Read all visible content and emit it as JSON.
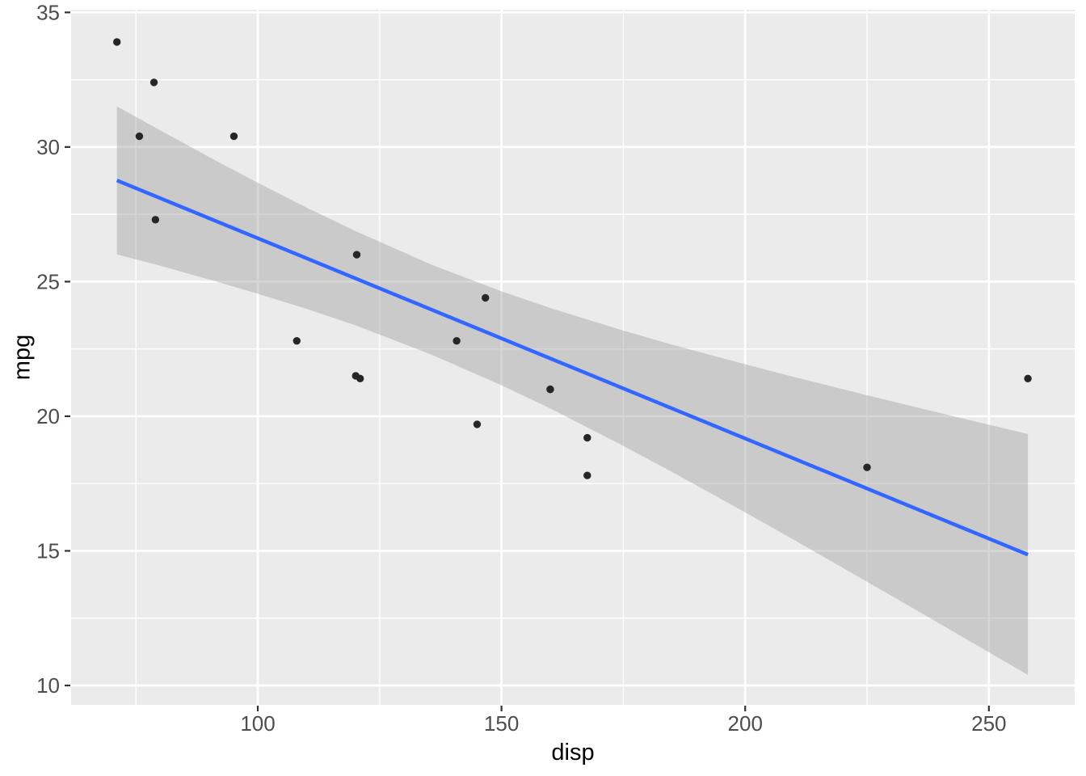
{
  "chart_data": {
    "type": "scatter",
    "title": "",
    "xlabel": "disp",
    "ylabel": "mpg",
    "x_ticks": [
      100,
      150,
      200,
      250
    ],
    "y_ticks": [
      10,
      15,
      20,
      25,
      30,
      35
    ],
    "x_minor_ticks": [
      75,
      125,
      175,
      225
    ],
    "y_minor_ticks": [
      12.5,
      17.5,
      22.5,
      27.5,
      32.5
    ],
    "xlim": [
      61.7,
      267.6
    ],
    "ylim": [
      9.28,
      35.1
    ],
    "grid": "on",
    "legend": "none",
    "points": [
      [
        160,
        21.0
      ],
      [
        160,
        21.0
      ],
      [
        108,
        22.8
      ],
      [
        258,
        21.4
      ],
      [
        225,
        18.1
      ],
      [
        146.7,
        24.4
      ],
      [
        140.8,
        22.8
      ],
      [
        167.6,
        19.2
      ],
      [
        167.6,
        17.8
      ],
      [
        78.7,
        32.4
      ],
      [
        75.7,
        30.4
      ],
      [
        71.1,
        33.9
      ],
      [
        120.1,
        21.5
      ],
      [
        79,
        27.3
      ],
      [
        120.3,
        26.0
      ],
      [
        95.1,
        30.4
      ],
      [
        145,
        19.7
      ],
      [
        121,
        21.4
      ]
    ],
    "smooth_line": {
      "method": "lm",
      "x": [
        71.1,
        258
      ],
      "y": [
        28.76,
        14.86
      ]
    },
    "ribbon": {
      "x": [
        71.1,
        80,
        90,
        100,
        110,
        120,
        135.5,
        150,
        160,
        175,
        185,
        200,
        210,
        225,
        235,
        245,
        258
      ],
      "upper": [
        31.51,
        30.62,
        29.63,
        28.67,
        27.75,
        26.88,
        25.64,
        24.64,
        24.02,
        23.18,
        22.66,
        21.93,
        21.46,
        20.78,
        20.34,
        19.9,
        19.34
      ],
      "lower": [
        26.01,
        25.59,
        25.08,
        24.55,
        23.99,
        23.38,
        22.3,
        21.15,
        20.29,
        18.9,
        17.93,
        16.43,
        15.41,
        13.85,
        12.81,
        11.76,
        10.39
      ]
    },
    "colors": {
      "background": "#FFFFFF",
      "panel_bg": "#EBEBEB",
      "grid": "#FFFFFF",
      "ribbon": "#999999",
      "ribbon_opacity": 0.4,
      "line": "#3366FF",
      "point": "#262626",
      "tick_label": "#4D4D4D",
      "tick_mark": "#333333",
      "axis_title": "#000000"
    }
  }
}
